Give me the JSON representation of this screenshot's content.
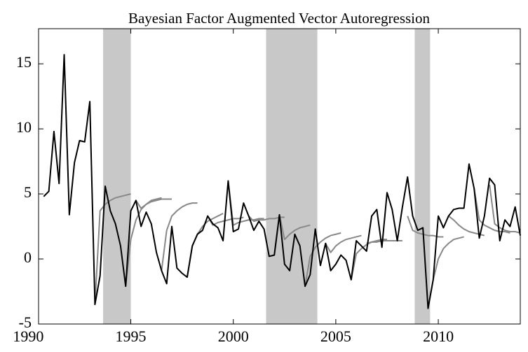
{
  "chart_data": {
    "type": "line",
    "title": "Bayesian Factor Augmented Vector Autoregression",
    "xlim": [
      1990.5,
      2014
    ],
    "xticks": [
      1990,
      1995,
      2000,
      2005,
      2010
    ],
    "ylim": [
      -5,
      17.7
    ],
    "yticks": [
      -5,
      0,
      5,
      10,
      15
    ],
    "shaded": [
      [
        1993.65,
        1995.0
      ],
      [
        2001.6,
        2004.1
      ],
      [
        2008.85,
        2009.6
      ]
    ],
    "shade_color": "#c8c8c8",
    "series": [
      {
        "color": "#000000",
        "x": [
          1990.75,
          1991,
          1991.25,
          1991.5,
          1991.75,
          1992,
          1992.25,
          1992.5,
          1992.75,
          1993,
          1993.25,
          1993.5,
          1993.75,
          1994,
          1994.25,
          1994.5,
          1994.75,
          1995,
          1995.25,
          1995.5,
          1995.75,
          1996,
          1996.25,
          1996.5,
          1996.75,
          1997,
          1997.25,
          1997.5,
          1997.75,
          1998,
          1998.25,
          1998.5,
          1998.75,
          1999,
          1999.25,
          1999.5,
          1999.75,
          2000,
          2000.25,
          2000.5,
          2000.75,
          2001,
          2001.25,
          2001.5,
          2001.75,
          2002,
          2002.25,
          2002.5,
          2002.75,
          2003,
          2003.25,
          2003.5,
          2003.75,
          2004,
          2004.25,
          2004.5,
          2004.75,
          2005,
          2005.25,
          2005.5,
          2005.75,
          2006,
          2006.25,
          2006.5,
          2006.75,
          2007,
          2007.25,
          2007.5,
          2007.75,
          2008,
          2008.25,
          2008.5,
          2008.75,
          2009,
          2009.25,
          2009.5,
          2009.75,
          2010,
          2010.25,
          2010.5,
          2010.75,
          2011,
          2011.25,
          2011.5,
          2011.75,
          2012,
          2012.25,
          2012.5,
          2012.75,
          2013,
          2013.25,
          2013.5,
          2013.75,
          2014
        ],
        "values": [
          4.8,
          5.2,
          9.8,
          5.8,
          15.7,
          3.4,
          7.4,
          9.1,
          9.0,
          12.1,
          -3.5,
          -1.3,
          5.6,
          3.7,
          2.7,
          1.0,
          -2.1,
          3.7,
          4.5,
          2.5,
          3.6,
          2.7,
          0.5,
          -0.9,
          -1.9,
          2.5,
          -0.7,
          -1.1,
          -1.4,
          1.0,
          1.9,
          2.2,
          3.3,
          2.7,
          2.4,
          1.4,
          6.0,
          2.1,
          2.3,
          4.3,
          3.3,
          2.2,
          2.9,
          2.3,
          0.2,
          0.3,
          3.4,
          -0.4,
          -0.9,
          1.9,
          1.0,
          -2.1,
          -1.2,
          2.3,
          -0.5,
          1.2,
          -0.9,
          -0.4,
          0.3,
          -0.1,
          -1.6,
          1.4,
          1.0,
          0.6,
          3.3,
          3.8,
          0.9,
          5.1,
          3.8,
          1.4,
          4.0,
          6.3,
          3.3,
          2.2,
          2.4,
          -3.8,
          -1.6,
          3.3,
          2.4,
          3.3,
          3.8,
          3.9,
          3.9,
          7.3,
          5.4,
          1.6,
          3.3,
          6.2,
          5.7,
          1.4,
          3.0,
          2.5,
          4.0,
          1.8
        ]
      },
      {
        "color": "#888888",
        "x": [
          1993.25,
          1993.5,
          1993.75,
          1994,
          1994.25,
          1994.5,
          1994.75,
          1995
        ],
        "values": [
          -3.5,
          3.7,
          4.2,
          4.5,
          4.7,
          4.8,
          4.9,
          5.0
        ]
      },
      {
        "color": "#888888",
        "x": [
          1994.75,
          1995,
          1995.25,
          1995.5,
          1995.75,
          1996,
          1996.25,
          1996.5
        ],
        "values": [
          -2.1,
          1.5,
          3.0,
          3.8,
          4.2,
          4.5,
          4.6,
          4.7
        ]
      },
      {
        "color": "#888888",
        "x": [
          1995.25,
          1995.5,
          1995.75,
          1996,
          1996.25,
          1996.5,
          1996.75,
          1997
        ],
        "values": [
          4.5,
          3.9,
          4.2,
          4.4,
          4.5,
          4.6,
          4.6,
          4.6
        ]
      },
      {
        "color": "#888888",
        "x": [
          1996.5,
          1996.75,
          1997,
          1997.25,
          1997.5,
          1997.75,
          1998,
          1998.25
        ],
        "values": [
          -0.9,
          2.2,
          3.3,
          3.7,
          4.0,
          4.2,
          4.3,
          4.3
        ]
      },
      {
        "color": "#888888",
        "x": [
          1997.75,
          1998,
          1998.25,
          1998.5,
          1998.75,
          1999,
          1999.25,
          1999.5
        ],
        "values": [
          -1.4,
          1.0,
          1.9,
          2.5,
          2.9,
          3.1,
          3.3,
          3.5
        ]
      },
      {
        "color": "#888888",
        "x": [
          1998.75,
          1999,
          1999.25,
          1999.5,
          1999.75,
          2000,
          2000.25,
          2000.5
        ],
        "values": [
          3.3,
          2.6,
          2.8,
          2.9,
          3.0,
          3.1,
          3.1,
          3.2
        ]
      },
      {
        "color": "#888888",
        "x": [
          1999.75,
          2000,
          2000.25,
          2000.5,
          2000.75,
          2001,
          2001.25,
          2001.5
        ],
        "values": [
          6.0,
          2.6,
          2.8,
          2.9,
          3.0,
          3.0,
          3.1,
          3.1
        ]
      },
      {
        "color": "#888888",
        "x": [
          2000.75,
          2001,
          2001.25,
          2001.5,
          2001.75,
          2002,
          2002.25,
          2002.5
        ],
        "values": [
          3.3,
          2.9,
          3.0,
          3.0,
          3.1,
          3.1,
          3.2,
          3.2
        ]
      },
      {
        "color": "#888888",
        "x": [
          2002,
          2002.25,
          2002.5,
          2002.75,
          2003,
          2003.25,
          2003.5,
          2003.75
        ],
        "values": [
          0.3,
          3.4,
          1.5,
          1.9,
          2.2,
          2.4,
          2.5,
          2.6
        ]
      },
      {
        "color": "#888888",
        "x": [
          2003.5,
          2003.75,
          2004,
          2004.25,
          2004.5,
          2004.75,
          2005,
          2005.25
        ],
        "values": [
          -2.1,
          0.2,
          0.9,
          1.3,
          1.6,
          1.8,
          1.9,
          2.0
        ]
      },
      {
        "color": "#888888",
        "x": [
          2004.5,
          2004.75,
          2005,
          2005.25,
          2005.5,
          2005.75,
          2006,
          2006.25
        ],
        "values": [
          1.2,
          0.5,
          1.0,
          1.3,
          1.5,
          1.6,
          1.7,
          1.8
        ]
      },
      {
        "color": "#888888",
        "x": [
          2005.75,
          2006,
          2006.25,
          2006.5,
          2006.75,
          2007,
          2007.25,
          2007.5
        ],
        "values": [
          -1.6,
          0.4,
          0.8,
          1.1,
          1.3,
          1.4,
          1.5,
          1.5
        ]
      },
      {
        "color": "#888888",
        "x": [
          2006.5,
          2006.75,
          2007,
          2007.25,
          2007.5,
          2007.75,
          2008,
          2008.25
        ],
        "values": [
          1.2,
          1.3,
          1.3,
          1.4,
          1.4,
          1.4,
          1.4,
          1.4
        ]
      },
      {
        "color": "#888888",
        "x": [
          2008.5,
          2008.75,
          2009,
          2009.25,
          2009.5,
          2009.75,
          2010,
          2010.25
        ],
        "values": [
          3.3,
          2.2,
          2.0,
          1.9,
          1.8,
          1.8,
          1.7,
          1.7
        ]
      },
      {
        "color": "#888888",
        "x": [
          2009.5,
          2009.75,
          2010,
          2010.25,
          2010.5,
          2010.75,
          2011,
          2011.25
        ],
        "values": [
          -3.8,
          -1.6,
          0.0,
          0.8,
          1.2,
          1.5,
          1.6,
          1.7
        ]
      },
      {
        "color": "#888888",
        "x": [
          2010.5,
          2010.75,
          2011,
          2011.25,
          2011.5,
          2011.75,
          2012,
          2012.25
        ],
        "values": [
          3.3,
          3.0,
          2.6,
          2.3,
          2.1,
          2.0,
          1.9,
          1.8
        ]
      },
      {
        "color": "#888888",
        "x": [
          2011.75,
          2012,
          2012.25,
          2012.5,
          2012.75,
          2013,
          2013.25,
          2013.5
        ],
        "values": [
          5.4,
          3.0,
          2.6,
          2.4,
          2.2,
          2.1,
          2.1,
          2.0
        ]
      },
      {
        "color": "#888888",
        "x": [
          2012.5,
          2012.75,
          2013,
          2013.25,
          2013.5,
          2013.75,
          2014
        ],
        "values": [
          5.7,
          2.7,
          2.4,
          2.2,
          2.1,
          2.1,
          2.0
        ]
      }
    ]
  }
}
